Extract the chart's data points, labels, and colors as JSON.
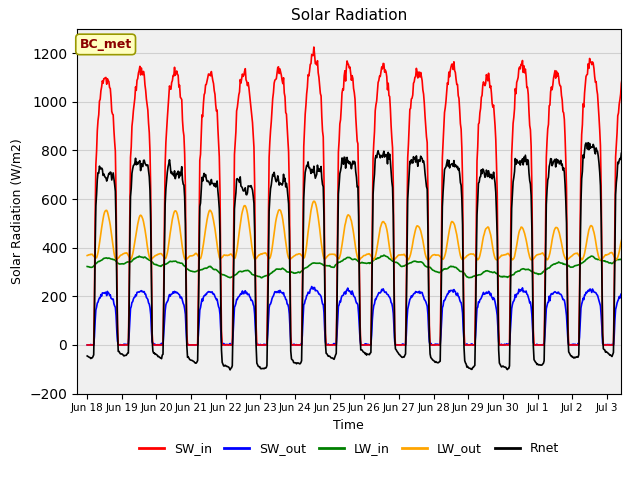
{
  "title": "Solar Radiation",
  "xlabel": "Time",
  "ylabel": "Solar Radiation (W/m2)",
  "ylim": [
    -200,
    1300
  ],
  "yticks": [
    -200,
    0,
    200,
    400,
    600,
    800,
    1000,
    1200
  ],
  "annotation_text": "BC_met",
  "annotation_color": "#8B0000",
  "annotation_bg": "#FFFFC0",
  "lines": {
    "SW_in": {
      "color": "red",
      "lw": 1.2
    },
    "SW_out": {
      "color": "blue",
      "lw": 1.2
    },
    "LW_in": {
      "color": "green",
      "lw": 1.2
    },
    "LW_out": {
      "color": "orange",
      "lw": 1.2
    },
    "Rnet": {
      "color": "black",
      "lw": 1.2
    }
  },
  "legend_labels": [
    "SW_in",
    "SW_out",
    "LW_in",
    "LW_out",
    "Rnet"
  ],
  "legend_colors": [
    "red",
    "blue",
    "green",
    "orange",
    "black"
  ],
  "xtick_labels": [
    "Jun 18",
    "Jun 19",
    "Jun 20",
    "Jun 21",
    "Jun 22",
    "Jun 23",
    "Jun 24",
    "Jun 25",
    "Jun 26",
    "Jun 27",
    "Jun 28",
    "Jun 29",
    "Jun 30",
    "Jul 1",
    "Jul 2",
    "Jul 3"
  ],
  "grid_color": "#d0d0d0",
  "bg_color": "#f0f0f0",
  "peak_SW": [
    1100,
    1130,
    1120,
    1110,
    1120,
    1130,
    1190,
    1145,
    1140,
    1130,
    1140,
    1100,
    1150,
    1120,
    1160,
    1120
  ],
  "peak_LWout": [
    560,
    540,
    560,
    560,
    580,
    560,
    600,
    540,
    510,
    500,
    510,
    490,
    490,
    490,
    490,
    490
  ],
  "night_Rnet": -120
}
